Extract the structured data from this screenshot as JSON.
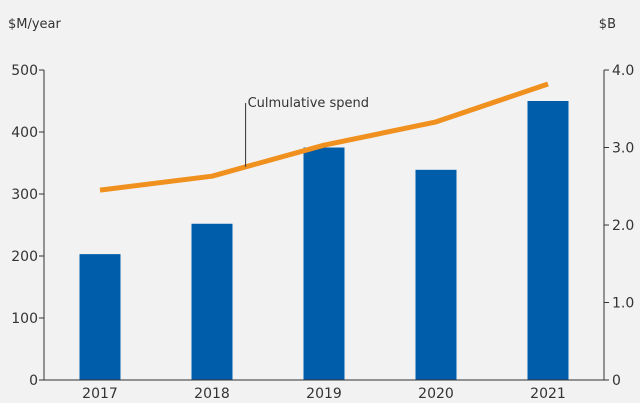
{
  "chart_data": {
    "type": "bar",
    "categories": [
      "2017",
      "2018",
      "2019",
      "2020",
      "2021"
    ],
    "series": [
      {
        "type": "bar",
        "axis": "left",
        "values": [
          203,
          252,
          375,
          339,
          450
        ]
      },
      {
        "type": "line",
        "axis": "right",
        "values": [
          2.45,
          2.63,
          3.03,
          3.33,
          3.82
        ]
      }
    ],
    "y_left": {
      "unit": "$M/year",
      "ylim": [
        0,
        500
      ],
      "ticks": [
        "0",
        "100",
        "200",
        "300",
        "400",
        "500"
      ]
    },
    "y_right": {
      "unit": "$B",
      "ylim": [
        0,
        4.0
      ],
      "ticks": [
        "0",
        "1.0",
        "2.0",
        "3.0",
        "4.0"
      ]
    },
    "annotation": {
      "text": "Culmulative spend",
      "points_to_x": 1.3
    },
    "grid": false,
    "colors": {
      "bar": "#005daa",
      "line": "#f0901e",
      "axis": "#333333",
      "background": "#f2f2f2"
    }
  }
}
